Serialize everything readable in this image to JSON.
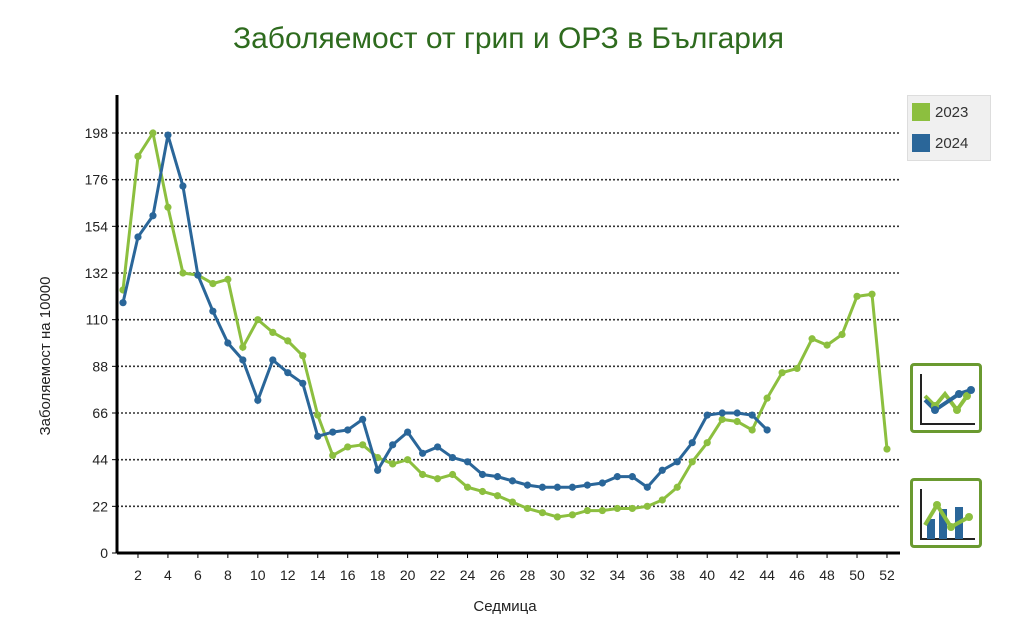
{
  "title": "Заболяемост от грип и ОРЗ в България",
  "chart_data": {
    "type": "line",
    "title": "Заболяемост от грип и ОРЗ в България",
    "xlabel": "Седмица",
    "ylabel": "Заболяемост на 10000",
    "xlim": [
      1,
      52
    ],
    "ylim": [
      0,
      220
    ],
    "yticks": [
      0,
      22,
      44,
      66,
      88,
      110,
      132,
      154,
      176,
      198
    ],
    "xticks": [
      2,
      4,
      6,
      8,
      10,
      12,
      14,
      16,
      18,
      20,
      22,
      24,
      26,
      28,
      30,
      32,
      34,
      36,
      38,
      40,
      42,
      44,
      46,
      48,
      50,
      52
    ],
    "grid": "horizontal-dotted",
    "legend_position": "top-right",
    "series": [
      {
        "name": "2023",
        "color": "#8cbf3f",
        "values": [
          124,
          187,
          198,
          163,
          132,
          131,
          127,
          129,
          97,
          110,
          104,
          100,
          93,
          65,
          46,
          50,
          51,
          45,
          42,
          44,
          37,
          35,
          37,
          31,
          29,
          27,
          24,
          21,
          19,
          17,
          18,
          20,
          20,
          21,
          21,
          22,
          25,
          31,
          43,
          52,
          63,
          62,
          58,
          73,
          85,
          87,
          101,
          98,
          103,
          121,
          122,
          49
        ]
      },
      {
        "name": "2024",
        "color": "#2a6699",
        "values": [
          118,
          149,
          159,
          197,
          173,
          131,
          114,
          99,
          91,
          72,
          91,
          85,
          80,
          55,
          57,
          58,
          63,
          39,
          51,
          57,
          47,
          50,
          45,
          43,
          37,
          36,
          34,
          32,
          31,
          31,
          31,
          32,
          33,
          36,
          36,
          31,
          39,
          43,
          52,
          65,
          66,
          66,
          65,
          58
        ]
      }
    ]
  },
  "buttons": {
    "line_chart": "line-chart-view",
    "combo_chart": "bar-line-chart-view"
  }
}
